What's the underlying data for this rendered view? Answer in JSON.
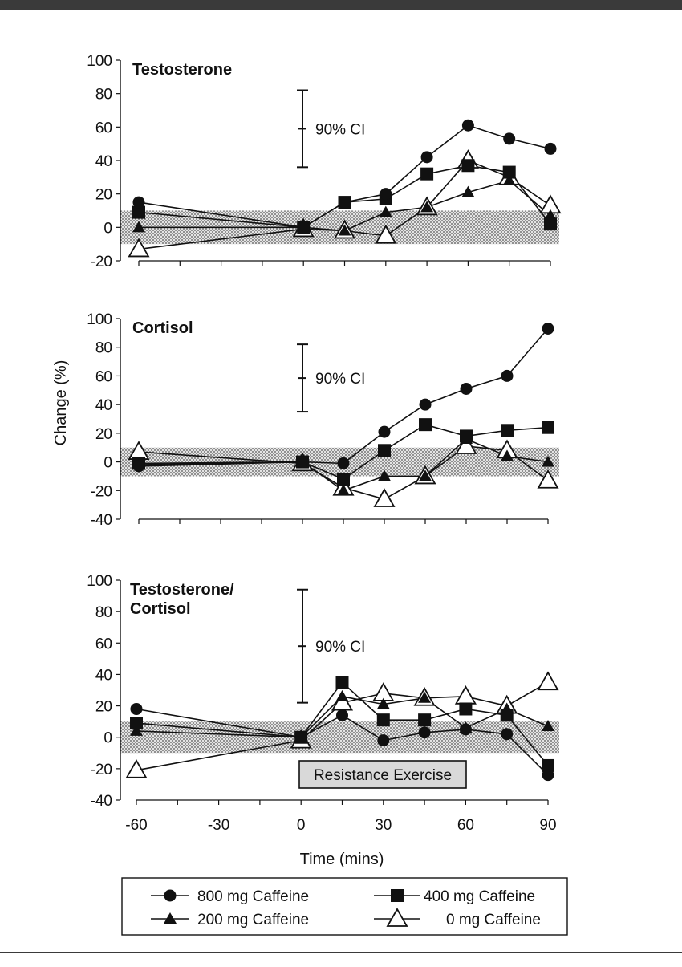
{
  "chart_data": {
    "type": "line",
    "x": [
      -60,
      0,
      15,
      30,
      45,
      60,
      75,
      90
    ],
    "xlabel": "Time (mins)",
    "ylabel": "Change (%)",
    "x_ticks": [
      "-60",
      "-30",
      "0",
      "30",
      "60",
      "90"
    ],
    "ci_label": "90% CI",
    "exercise_label": "Resistance Exercise",
    "legend": [
      {
        "name": "800 mg Caffeine",
        "marker": "circle"
      },
      {
        "name": "400 mg Caffeine",
        "marker": "square"
      },
      {
        "name": "200 mg Caffeine",
        "marker": "triangle"
      },
      {
        "name": "0 mg Caffeine",
        "marker": "open-triangle"
      }
    ],
    "legend_position": "bottom",
    "panels": [
      {
        "title": "Testosterone",
        "ylim": [
          -20,
          100
        ],
        "y_ticks": [
          "100",
          "80",
          "60",
          "40",
          "20",
          "0",
          "-20"
        ],
        "ci": [
          36,
          82
        ],
        "trivial_band": [
          -10,
          10
        ],
        "series": [
          {
            "name": "800 mg Caffeine",
            "values": [
              15,
              0,
              15,
              20,
              42,
              61,
              53,
              47
            ]
          },
          {
            "name": "400 mg Caffeine",
            "values": [
              9,
              0,
              15,
              17,
              32,
              37,
              33,
              2
            ]
          },
          {
            "name": "200 mg Caffeine",
            "values": [
              0,
              0,
              -2,
              9,
              12,
              21,
              28,
              7
            ]
          },
          {
            "name": "0 mg Caffeine",
            "values": [
              -13,
              -1,
              -2,
              -5,
              12,
              40,
              30,
              13
            ]
          }
        ]
      },
      {
        "title": "Cortisol",
        "ylim": [
          -40,
          100
        ],
        "y_ticks": [
          "100",
          "80",
          "60",
          "40",
          "20",
          "0",
          "-20",
          "-40"
        ],
        "ci": [
          35,
          82
        ],
        "trivial_band": [
          -10,
          10
        ],
        "series": [
          {
            "name": "800 mg Caffeine",
            "values": [
              -3,
              0,
              -1,
              21,
              40,
              51,
              60,
              93
            ]
          },
          {
            "name": "400 mg Caffeine",
            "values": [
              -1,
              0,
              -12,
              8,
              26,
              18,
              22,
              24
            ]
          },
          {
            "name": "200 mg Caffeine",
            "values": [
              -2,
              0,
              -20,
              -10,
              -10,
              16,
              4,
              0
            ]
          },
          {
            "name": "0 mg Caffeine",
            "values": [
              7,
              -1,
              -18,
              -26,
              -10,
              11,
              8,
              -13
            ]
          }
        ]
      },
      {
        "title": "Testosterone/\nCortisol",
        "ylim": [
          -40,
          100
        ],
        "y_ticks": [
          "100",
          "80",
          "60",
          "40",
          "20",
          "0",
          "-20",
          "-40"
        ],
        "ci": [
          22,
          94
        ],
        "trivial_band": [
          -10,
          10
        ],
        "series": [
          {
            "name": "800 mg Caffeine",
            "values": [
              18,
              0,
              14,
              -2,
              3,
              5,
              2,
              -24
            ]
          },
          {
            "name": "400 mg Caffeine",
            "values": [
              9,
              0,
              35,
              11,
              11,
              18,
              14,
              -18
            ]
          },
          {
            "name": "200 mg Caffeine",
            "values": [
              4,
              0,
              26,
              21,
              25,
              6,
              18,
              7
            ]
          },
          {
            "name": "0 mg Caffeine",
            "values": [
              -21,
              -2,
              22,
              28,
              25,
              26,
              20,
              35
            ]
          }
        ]
      }
    ]
  }
}
